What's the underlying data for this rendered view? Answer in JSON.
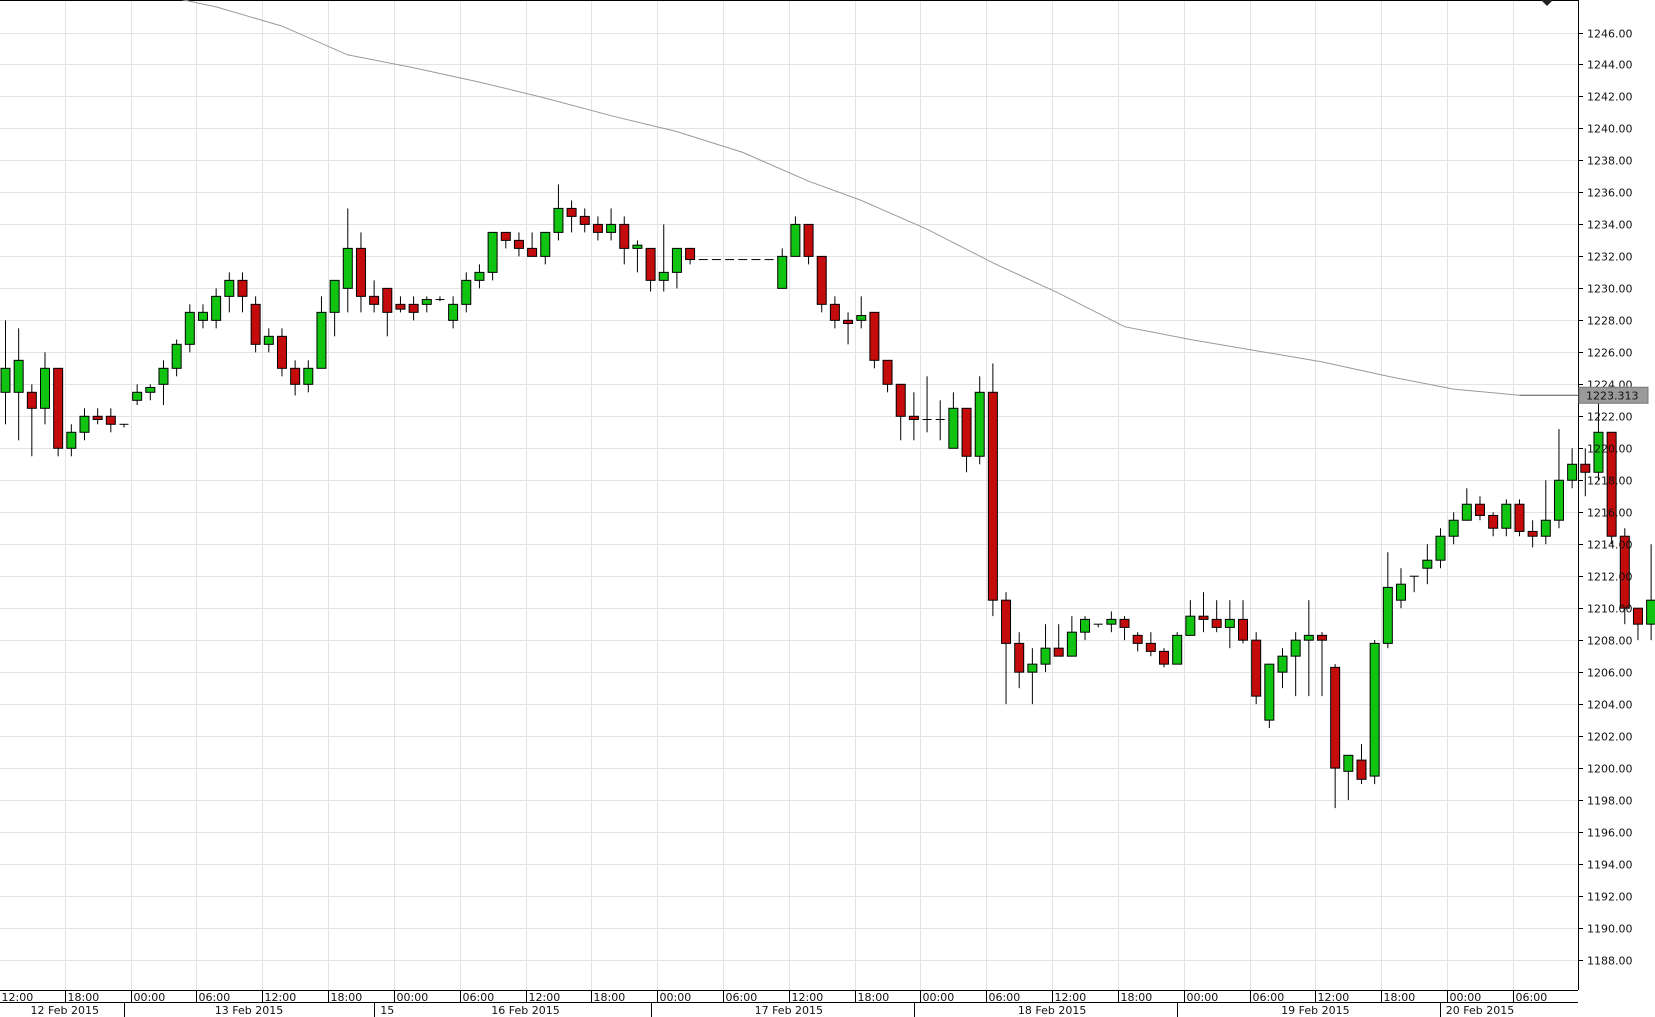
{
  "chart_data": {
    "type": "candlestick",
    "title": "",
    "xlabel": "",
    "ylabel": "",
    "ylim": [
      1186,
      1248
    ],
    "yticks": [
      1188,
      1190,
      1192,
      1194,
      1196,
      1198,
      1200,
      1202,
      1204,
      1206,
      1208,
      1210,
      1212,
      1214,
      1216,
      1218,
      1220,
      1222,
      1224,
      1226,
      1228,
      1230,
      1232,
      1234,
      1236,
      1238,
      1240,
      1242,
      1244,
      1246
    ],
    "y_tick_labels": [
      "1188.00",
      "1190.00",
      "1192.00",
      "1194.00",
      "1196.00",
      "1198.00",
      "1200.00",
      "1202.00",
      "1204.00",
      "1206.00",
      "1208.00",
      "1210.00",
      "1212.00",
      "1214.00",
      "1216.00",
      "1218.00",
      "1220.00",
      "1222.00",
      "1224.00",
      "1226.00",
      "1228.00",
      "1230.00",
      "1232.00",
      "1234.00",
      "1236.00",
      "1238.00",
      "1240.00",
      "1242.00",
      "1244.00",
      "1246.00"
    ],
    "grid": true,
    "up_color": "#11c411",
    "down_color": "#c40c0c",
    "ma_color": "#9a9a9a",
    "current_price_label": "1223.313",
    "time_labels": [
      "12:00",
      "18:00",
      "00:00",
      "06:00",
      "12:00",
      "18:00",
      "00:00",
      "06:00",
      "12:00",
      "18:00",
      "00:00",
      "06:00",
      "12:00",
      "18:00",
      "00:00",
      "06:00",
      "12:00",
      "18:00",
      "00:00",
      "06:00",
      "12:00",
      "18:00",
      "00:00",
      "06:00"
    ],
    "time_label_slots": [
      0,
      5,
      10,
      15,
      20,
      25,
      30,
      35,
      40,
      45,
      50,
      55,
      60,
      65,
      70,
      75,
      80,
      85,
      90,
      95,
      100,
      105,
      110,
      115
    ],
    "date_labels": [
      "12 Feb 2015",
      "13 Feb 2015",
      "15",
      "16 Feb 2015",
      "17 Feb 2015",
      "18 Feb 2015",
      "19 Feb 2015",
      "20 Feb 2015"
    ],
    "date_label_slots": [
      4.5,
      18.5,
      29,
      39.5,
      59.5,
      79.5,
      99.5,
      112
    ],
    "date_divider_slots": [
      9.5,
      28.5,
      49.5,
      69.5,
      89.5,
      109.5
    ],
    "candles": [
      {
        "o": 1223.5,
        "h": 1228.0,
        "l": 1221.5,
        "c": 1225.0
      },
      {
        "o": 1223.5,
        "h": 1227.5,
        "l": 1220.5,
        "c": 1225.5
      },
      {
        "o": 1223.5,
        "h": 1224.0,
        "l": 1219.5,
        "c": 1222.5
      },
      {
        "o": 1222.5,
        "h": 1226.0,
        "l": 1221.5,
        "c": 1225.0
      },
      {
        "o": 1225.0,
        "h": 1225.0,
        "l": 1219.5,
        "c": 1220.0
      },
      {
        "o": 1220.0,
        "h": 1221.5,
        "l": 1219.5,
        "c": 1221.0
      },
      {
        "o": 1221.0,
        "h": 1222.5,
        "l": 1220.5,
        "c": 1222.0
      },
      {
        "o": 1222.0,
        "h": 1222.5,
        "l": 1221.5,
        "c": 1221.8
      },
      {
        "o": 1222.0,
        "h": 1222.5,
        "l": 1221.0,
        "c": 1221.5
      },
      {
        "o": 1221.5,
        "h": 1221.5,
        "l": 1221.3,
        "c": 1221.5
      },
      {
        "o": 1223.0,
        "h": 1224.0,
        "l": 1222.7,
        "c": 1223.5
      },
      {
        "o": 1223.5,
        "h": 1224.0,
        "l": 1223.0,
        "c": 1223.8
      },
      {
        "o": 1224.0,
        "h": 1225.5,
        "l": 1222.7,
        "c": 1225.0
      },
      {
        "o": 1225.0,
        "h": 1226.8,
        "l": 1224.5,
        "c": 1226.5
      },
      {
        "o": 1226.5,
        "h": 1229.0,
        "l": 1226.0,
        "c": 1228.5
      },
      {
        "o": 1228.0,
        "h": 1229.0,
        "l": 1227.5,
        "c": 1228.5
      },
      {
        "o": 1228.0,
        "h": 1230.0,
        "l": 1227.5,
        "c": 1229.5
      },
      {
        "o": 1229.5,
        "h": 1231.0,
        "l": 1228.5,
        "c": 1230.5
      },
      {
        "o": 1230.5,
        "h": 1231.0,
        "l": 1228.5,
        "c": 1229.5
      },
      {
        "o": 1229.0,
        "h": 1229.5,
        "l": 1226.0,
        "c": 1226.5
      },
      {
        "o": 1226.5,
        "h": 1227.5,
        "l": 1226.0,
        "c": 1227.0
      },
      {
        "o": 1227.0,
        "h": 1227.5,
        "l": 1224.5,
        "c": 1225.0
      },
      {
        "o": 1225.0,
        "h": 1225.5,
        "l": 1223.3,
        "c": 1224.0
      },
      {
        "o": 1224.0,
        "h": 1225.5,
        "l": 1223.5,
        "c": 1225.0
      },
      {
        "o": 1225.0,
        "h": 1229.5,
        "l": 1225.0,
        "c": 1228.5
      },
      {
        "o": 1228.5,
        "h": 1230.5,
        "l": 1227.0,
        "c": 1230.5
      },
      {
        "o": 1230.0,
        "h": 1235.0,
        "l": 1228.5,
        "c": 1232.5
      },
      {
        "o": 1232.5,
        "h": 1233.5,
        "l": 1228.5,
        "c": 1229.5
      },
      {
        "o": 1229.5,
        "h": 1230.5,
        "l": 1228.5,
        "c": 1229.0
      },
      {
        "o": 1230.0,
        "h": 1230.0,
        "l": 1227.0,
        "c": 1228.5
      },
      {
        "o": 1229.0,
        "h": 1229.5,
        "l": 1228.5,
        "c": 1228.7
      },
      {
        "o": 1229.0,
        "h": 1229.5,
        "l": 1228.0,
        "c": 1228.5
      },
      {
        "o": 1229.0,
        "h": 1229.5,
        "l": 1228.5,
        "c": 1229.3
      },
      {
        "o": 1229.3,
        "h": 1229.5,
        "l": 1229.2,
        "c": 1229.3
      },
      {
        "o": 1228.0,
        "h": 1229.5,
        "l": 1227.5,
        "c": 1229.0
      },
      {
        "o": 1229.0,
        "h": 1231.0,
        "l": 1228.5,
        "c": 1230.5
      },
      {
        "o": 1230.5,
        "h": 1231.5,
        "l": 1230.0,
        "c": 1231.0
      },
      {
        "o": 1231.0,
        "h": 1233.5,
        "l": 1230.5,
        "c": 1233.5
      },
      {
        "o": 1233.5,
        "h": 1233.5,
        "l": 1232.5,
        "c": 1233.0
      },
      {
        "o": 1233.0,
        "h": 1233.5,
        "l": 1232.0,
        "c": 1232.5
      },
      {
        "o": 1232.5,
        "h": 1233.5,
        "l": 1232.0,
        "c": 1232.0
      },
      {
        "o": 1232.0,
        "h": 1233.5,
        "l": 1231.5,
        "c": 1233.5
      },
      {
        "o": 1233.5,
        "h": 1236.5,
        "l": 1233.0,
        "c": 1235.0
      },
      {
        "o": 1235.0,
        "h": 1235.5,
        "l": 1233.5,
        "c": 1234.5
      },
      {
        "o": 1234.5,
        "h": 1235.0,
        "l": 1233.5,
        "c": 1234.0
      },
      {
        "o": 1234.0,
        "h": 1234.5,
        "l": 1233.0,
        "c": 1233.5
      },
      {
        "o": 1233.5,
        "h": 1235.0,
        "l": 1233.0,
        "c": 1234.0
      },
      {
        "o": 1234.0,
        "h": 1234.5,
        "l": 1231.5,
        "c": 1232.5
      },
      {
        "o": 1232.5,
        "h": 1233.0,
        "l": 1231.0,
        "c": 1232.7
      },
      {
        "o": 1232.5,
        "h": 1232.5,
        "l": 1229.8,
        "c": 1230.5
      },
      {
        "o": 1230.5,
        "h": 1234.0,
        "l": 1229.8,
        "c": 1231.0
      },
      {
        "o": 1231.0,
        "h": 1232.0,
        "l": 1230.0,
        "c": 1232.5
      },
      {
        "o": 1232.5,
        "h": 1232.5,
        "l": 1231.5,
        "c": 1231.8
      },
      {
        "o": 1231.8,
        "h": 1231.8,
        "l": 1231.8,
        "c": 1231.8
      },
      {
        "o": 1231.8,
        "h": 1231.8,
        "l": 1231.8,
        "c": 1231.8
      },
      {
        "o": 1231.8,
        "h": 1231.8,
        "l": 1231.8,
        "c": 1231.8
      },
      {
        "o": 1231.8,
        "h": 1231.8,
        "l": 1231.8,
        "c": 1231.8
      },
      {
        "o": 1231.8,
        "h": 1231.8,
        "l": 1231.8,
        "c": 1231.8
      },
      {
        "o": 1231.8,
        "h": 1231.8,
        "l": 1231.8,
        "c": 1231.8
      },
      {
        "o": 1230.0,
        "h": 1232.5,
        "l": 1230.0,
        "c": 1232.0
      },
      {
        "o": 1232.0,
        "h": 1234.5,
        "l": 1232.0,
        "c": 1234.0
      },
      {
        "o": 1234.0,
        "h": 1234.0,
        "l": 1231.5,
        "c": 1232.0
      },
      {
        "o": 1232.0,
        "h": 1232.0,
        "l": 1228.5,
        "c": 1229.0
      },
      {
        "o": 1229.0,
        "h": 1229.5,
        "l": 1227.5,
        "c": 1228.0
      },
      {
        "o": 1228.0,
        "h": 1228.5,
        "l": 1226.5,
        "c": 1227.8
      },
      {
        "o": 1228.0,
        "h": 1229.5,
        "l": 1227.5,
        "c": 1228.3
      },
      {
        "o": 1228.5,
        "h": 1228.5,
        "l": 1225.0,
        "c": 1225.5
      },
      {
        "o": 1225.5,
        "h": 1225.5,
        "l": 1223.5,
        "c": 1224.0
      },
      {
        "o": 1224.0,
        "h": 1224.0,
        "l": 1220.5,
        "c": 1222.0
      },
      {
        "o": 1222.0,
        "h": 1223.5,
        "l": 1220.5,
        "c": 1221.8
      },
      {
        "o": 1221.8,
        "h": 1224.5,
        "l": 1221.0,
        "c": 1221.8
      },
      {
        "o": 1221.8,
        "h": 1223.0,
        "l": 1220.5,
        "c": 1221.8
      },
      {
        "o": 1220.0,
        "h": 1223.5,
        "l": 1220.0,
        "c": 1222.5
      },
      {
        "o": 1222.5,
        "h": 1222.5,
        "l": 1218.5,
        "c": 1219.5
      },
      {
        "o": 1219.5,
        "h": 1224.5,
        "l": 1219.0,
        "c": 1223.5
      },
      {
        "o": 1223.5,
        "h": 1225.3,
        "l": 1209.5,
        "c": 1210.5
      },
      {
        "o": 1210.5,
        "h": 1211.0,
        "l": 1204.0,
        "c": 1207.8
      },
      {
        "o": 1207.8,
        "h": 1208.5,
        "l": 1205.0,
        "c": 1206.0
      },
      {
        "o": 1206.0,
        "h": 1207.5,
        "l": 1204.0,
        "c": 1206.5
      },
      {
        "o": 1206.5,
        "h": 1209.0,
        "l": 1206.0,
        "c": 1207.5
      },
      {
        "o": 1207.5,
        "h": 1209.0,
        "l": 1207.0,
        "c": 1207.0
      },
      {
        "o": 1207.0,
        "h": 1209.5,
        "l": 1207.0,
        "c": 1208.5
      },
      {
        "o": 1208.5,
        "h": 1209.5,
        "l": 1208.0,
        "c": 1209.3
      },
      {
        "o": 1209.0,
        "h": 1209.0,
        "l": 1208.8,
        "c": 1209.0
      },
      {
        "o": 1209.0,
        "h": 1209.8,
        "l": 1208.5,
        "c": 1209.3
      },
      {
        "o": 1209.3,
        "h": 1209.5,
        "l": 1208.0,
        "c": 1208.8
      },
      {
        "o": 1208.3,
        "h": 1208.5,
        "l": 1207.3,
        "c": 1207.8
      },
      {
        "o": 1207.8,
        "h": 1208.5,
        "l": 1207.0,
        "c": 1207.3
      },
      {
        "o": 1207.3,
        "h": 1207.5,
        "l": 1206.3,
        "c": 1206.5
      },
      {
        "o": 1206.5,
        "h": 1208.5,
        "l": 1206.5,
        "c": 1208.3
      },
      {
        "o": 1208.3,
        "h": 1210.5,
        "l": 1208.3,
        "c": 1209.5
      },
      {
        "o": 1209.5,
        "h": 1211.0,
        "l": 1208.5,
        "c": 1209.3
      },
      {
        "o": 1209.3,
        "h": 1210.5,
        "l": 1208.5,
        "c": 1208.8
      },
      {
        "o": 1208.8,
        "h": 1210.5,
        "l": 1207.5,
        "c": 1209.3
      },
      {
        "o": 1209.3,
        "h": 1210.5,
        "l": 1207.8,
        "c": 1208.0
      },
      {
        "o": 1208.0,
        "h": 1208.5,
        "l": 1204.0,
        "c": 1204.5
      },
      {
        "o": 1203.0,
        "h": 1206.5,
        "l": 1202.5,
        "c": 1206.5
      },
      {
        "o": 1206.0,
        "h": 1207.5,
        "l": 1205.0,
        "c": 1207.0
      },
      {
        "o": 1207.0,
        "h": 1208.5,
        "l": 1204.5,
        "c": 1208.0
      },
      {
        "o": 1208.0,
        "h": 1210.5,
        "l": 1204.5,
        "c": 1208.3
      },
      {
        "o": 1208.3,
        "h": 1208.5,
        "l": 1204.5,
        "c": 1208.0
      },
      {
        "o": 1206.3,
        "h": 1206.5,
        "l": 1197.5,
        "c": 1200.0
      },
      {
        "o": 1199.8,
        "h": 1200.5,
        "l": 1198.0,
        "c": 1200.8
      },
      {
        "o": 1200.5,
        "h": 1201.5,
        "l": 1199.0,
        "c": 1199.3
      },
      {
        "o": 1199.5,
        "h": 1208.0,
        "l": 1199.0,
        "c": 1207.8
      },
      {
        "o": 1207.8,
        "h": 1213.5,
        "l": 1207.5,
        "c": 1211.3
      },
      {
        "o": 1210.5,
        "h": 1212.5,
        "l": 1210.0,
        "c": 1211.5
      },
      {
        "o": 1212.0,
        "h": 1212.0,
        "l": 1211.0,
        "c": 1212.0
      },
      {
        "o": 1212.5,
        "h": 1214.0,
        "l": 1211.5,
        "c": 1213.0
      },
      {
        "o": 1213.0,
        "h": 1215.0,
        "l": 1212.5,
        "c": 1214.5
      },
      {
        "o": 1214.5,
        "h": 1216.0,
        "l": 1214.0,
        "c": 1215.5
      },
      {
        "o": 1215.5,
        "h": 1217.5,
        "l": 1215.5,
        "c": 1216.5
      },
      {
        "o": 1216.5,
        "h": 1217.0,
        "l": 1215.5,
        "c": 1215.8
      },
      {
        "o": 1215.8,
        "h": 1216.0,
        "l": 1214.5,
        "c": 1215.0
      },
      {
        "o": 1215.0,
        "h": 1216.8,
        "l": 1214.5,
        "c": 1216.5
      },
      {
        "o": 1216.5,
        "h": 1216.8,
        "l": 1214.5,
        "c": 1214.8
      },
      {
        "o": 1214.8,
        "h": 1215.5,
        "l": 1213.8,
        "c": 1214.5
      },
      {
        "o": 1214.5,
        "h": 1218.0,
        "l": 1214.0,
        "c": 1215.5
      },
      {
        "o": 1215.5,
        "h": 1221.2,
        "l": 1215.0,
        "c": 1218.0
      },
      {
        "o": 1218.0,
        "h": 1220.0,
        "l": 1217.5,
        "c": 1219.0
      },
      {
        "o": 1219.0,
        "h": 1220.0,
        "l": 1217.0,
        "c": 1218.5
      },
      {
        "o": 1218.5,
        "h": 1223.0,
        "l": 1218.0,
        "c": 1221.0
      },
      {
        "o": 1221.0,
        "h": 1221.0,
        "l": 1214.0,
        "c": 1214.5
      },
      {
        "o": 1214.5,
        "h": 1215.0,
        "l": 1209.0,
        "c": 1210.0
      },
      {
        "o": 1210.0,
        "h": 1210.0,
        "l": 1208.0,
        "c": 1209.0
      },
      {
        "o": 1209.0,
        "h": 1214.0,
        "l": 1208.0,
        "c": 1210.5
      },
      {
        "o": 1210.5,
        "h": 1212.5,
        "l": 1207.5,
        "c": 1208.0
      },
      {
        "o": 1208.0,
        "h": 1210.0,
        "l": 1207.5,
        "c": 1209.0
      },
      {
        "o": 1209.0,
        "h": 1209.5,
        "l": 1206.5,
        "c": 1208.0
      },
      {
        "o": 1208.0,
        "h": 1208.3,
        "l": 1205.5,
        "c": 1207.5
      },
      {
        "o": 1207.5,
        "h": 1207.5,
        "l": 1206.5,
        "c": 1206.5
      },
      {
        "o": 1206.5,
        "h": 1206.5,
        "l": 1206.5,
        "c": 1206.5
      },
      {
        "o": 1207.5,
        "h": 1208.5,
        "l": 1207.0,
        "c": 1209.0
      },
      {
        "o": 1209.0,
        "h": 1209.5,
        "l": 1208.5,
        "c": 1209.0
      },
      {
        "o": 1209.0,
        "h": 1209.8,
        "l": 1208.5,
        "c": 1209.5
      },
      {
        "o": 1209.5,
        "h": 1209.5,
        "l": 1206.5,
        "c": 1207.0
      },
      {
        "o": 1207.0,
        "h": 1207.0,
        "l": 1206.0,
        "c": 1206.5
      },
      {
        "o": 1206.3,
        "h": 1207.8,
        "l": 1206.0,
        "c": 1207.5
      },
      {
        "o": 1207.5,
        "h": 1208.5,
        "l": 1207.0,
        "c": 1208.0
      },
      {
        "o": 1208.0,
        "h": 1209.0,
        "l": 1207.8,
        "c": 1209.0
      }
    ],
    "ma_points": [
      [
        12,
        1248.3
      ],
      [
        16,
        1247.6
      ],
      [
        21,
        1246.4
      ],
      [
        26,
        1244.6
      ],
      [
        31,
        1243.8
      ],
      [
        36,
        1242.9
      ],
      [
        41,
        1241.9
      ],
      [
        46,
        1240.8
      ],
      [
        51,
        1239.8
      ],
      [
        56,
        1238.5
      ],
      [
        61,
        1236.7
      ],
      [
        65,
        1235.5
      ],
      [
        70,
        1233.7
      ],
      [
        75,
        1231.6
      ],
      [
        80,
        1229.7
      ],
      [
        85,
        1227.6
      ],
      [
        90,
        1226.8
      ],
      [
        95,
        1226.1
      ],
      [
        100,
        1225.4
      ],
      [
        105,
        1224.5
      ],
      [
        110,
        1223.7
      ],
      [
        115,
        1223.313
      ]
    ]
  }
}
